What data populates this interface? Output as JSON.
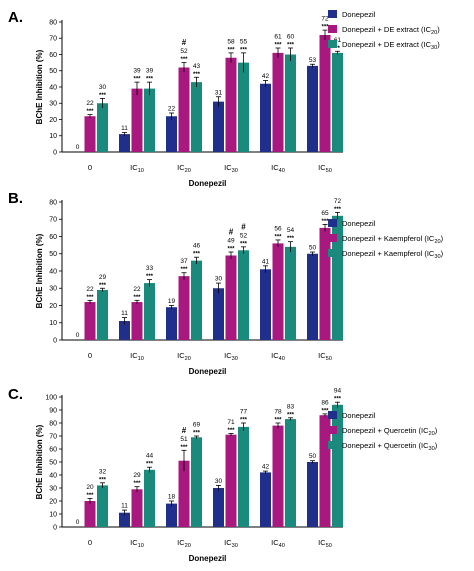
{
  "chart_data": [
    {
      "panel": "A.",
      "type": "bar",
      "ylabel": "BChE Inhibition (%)",
      "xlabel": "Donepezil",
      "ylim": [
        0,
        80
      ],
      "yticks": [
        0,
        10,
        20,
        30,
        40,
        50,
        60,
        70,
        80
      ],
      "categories": [
        {
          "main": "0",
          "sub": ""
        },
        {
          "main": "IC",
          "sub": "10"
        },
        {
          "main": "IC",
          "sub": "20"
        },
        {
          "main": "IC",
          "sub": "30"
        },
        {
          "main": "IC",
          "sub": "40"
        },
        {
          "main": "IC",
          "sub": "50"
        }
      ],
      "series": [
        {
          "name": "Donepezil",
          "sub": "",
          "suffix": "",
          "color": "#1f2f8a",
          "values": [
            0,
            11,
            22,
            31,
            42,
            53
          ],
          "labels": [
            "0",
            "11",
            "22",
            "31",
            "42",
            "53"
          ],
          "errors": [
            0,
            1,
            2,
            3,
            2,
            1
          ],
          "sig": [
            "",
            "",
            "",
            "",
            "",
            ""
          ],
          "hash": [
            "",
            "",
            "",
            "",
            "",
            ""
          ]
        },
        {
          "name": "Donepezil + DE extract (IC",
          "sub": "20",
          "suffix": ")",
          "color": "#a8187e",
          "values": [
            22,
            39,
            52,
            58,
            61,
            72
          ],
          "labels": [
            "22",
            "39",
            "52",
            "58",
            "61",
            "72"
          ],
          "errors": [
            1,
            4,
            3,
            3,
            3,
            3
          ],
          "sig": [
            "***",
            "***",
            "***",
            "***",
            "***",
            "***"
          ],
          "hash": [
            "",
            "",
            "#",
            "",
            "",
            ""
          ]
        },
        {
          "name": "Donepezil + DE extract (IC",
          "sub": "30",
          "suffix": ")",
          "color": "#1a8a7c",
          "values": [
            30,
            39,
            43,
            55,
            60,
            61
          ],
          "labels": [
            "30",
            "39",
            "43",
            "55",
            "60",
            "61"
          ],
          "errors": [
            3,
            4,
            3,
            6,
            4,
            1
          ],
          "sig": [
            "***",
            "***",
            "***",
            "***",
            "***",
            "**"
          ],
          "hash": [
            "",
            "",
            "",
            "",
            "",
            ""
          ]
        }
      ]
    },
    {
      "panel": "B.",
      "type": "bar",
      "ylabel": "BChE Inhibition (%)",
      "xlabel": "Donepezil",
      "ylim": [
        0,
        80
      ],
      "yticks": [
        0,
        10,
        20,
        30,
        40,
        50,
        60,
        70,
        80
      ],
      "categories": [
        {
          "main": "0",
          "sub": ""
        },
        {
          "main": "IC",
          "sub": "10"
        },
        {
          "main": "IC",
          "sub": "20"
        },
        {
          "main": "IC",
          "sub": "30"
        },
        {
          "main": "IC",
          "sub": "40"
        },
        {
          "main": "IC",
          "sub": "50"
        }
      ],
      "series": [
        {
          "name": "Donepezil",
          "sub": "",
          "suffix": "",
          "color": "#1f2f8a",
          "values": [
            0,
            11,
            19,
            30,
            41,
            50
          ],
          "labels": [
            "0",
            "11",
            "19",
            "30",
            "41",
            "50"
          ],
          "errors": [
            0,
            2,
            1,
            3,
            2,
            1
          ],
          "sig": [
            "",
            "",
            "",
            "",
            "",
            ""
          ],
          "hash": [
            "",
            "",
            "",
            "",
            "",
            ""
          ]
        },
        {
          "name": "Donepezil + Kaempferol (IC",
          "sub": "20",
          "suffix": ")",
          "color": "#a8187e",
          "values": [
            22,
            22,
            37,
            49,
            56,
            65
          ],
          "labels": [
            "22",
            "22",
            "37",
            "49",
            "56",
            "65"
          ],
          "errors": [
            1,
            1,
            2,
            2,
            2,
            2
          ],
          "sig": [
            "***",
            "***",
            "***",
            "***",
            "***",
            "***"
          ],
          "hash": [
            "",
            "",
            "",
            "#",
            "",
            ""
          ]
        },
        {
          "name": "Donepezil + Kaempferol (IC",
          "sub": "30",
          "suffix": ")",
          "color": "#1a8a7c",
          "values": [
            29,
            33,
            46,
            52,
            54,
            72
          ],
          "labels": [
            "29",
            "33",
            "46",
            "52",
            "54",
            "72"
          ],
          "errors": [
            1,
            2,
            2,
            2,
            3,
            2
          ],
          "sig": [
            "***",
            "***",
            "***",
            "***",
            "***",
            "***"
          ],
          "hash": [
            "",
            "",
            "",
            "#",
            "",
            ""
          ]
        }
      ]
    },
    {
      "panel": "C.",
      "type": "bar",
      "ylabel": "BChE Inhibition (%)",
      "xlabel": "Donepezil",
      "ylim": [
        0,
        100
      ],
      "yticks": [
        0,
        10,
        20,
        30,
        40,
        50,
        60,
        70,
        80,
        90,
        100
      ],
      "categories": [
        {
          "main": "0",
          "sub": ""
        },
        {
          "main": "IC",
          "sub": "10"
        },
        {
          "main": "IC",
          "sub": "20"
        },
        {
          "main": "IC",
          "sub": "30"
        },
        {
          "main": "IC",
          "sub": "40"
        },
        {
          "main": "IC",
          "sub": "50"
        }
      ],
      "series": [
        {
          "name": "Donepezil",
          "sub": "",
          "suffix": "",
          "color": "#1f2f8a",
          "values": [
            0,
            11,
            18,
            30,
            42,
            50
          ],
          "labels": [
            "0",
            "11",
            "18",
            "30",
            "42",
            "50"
          ],
          "errors": [
            0,
            2,
            2,
            2,
            1,
            1
          ],
          "sig": [
            "",
            "",
            "",
            "",
            "",
            ""
          ],
          "hash": [
            "",
            "",
            "",
            "",
            "",
            ""
          ]
        },
        {
          "name": "Donepezil + Quercetin (IC",
          "sub": "20",
          "suffix": ")",
          "color": "#a8187e",
          "values": [
            20,
            29,
            51,
            71,
            78,
            86
          ],
          "labels": [
            "20",
            "29",
            "51",
            "71",
            "78",
            "86"
          ],
          "errors": [
            2,
            2,
            8,
            1,
            2,
            1
          ],
          "sig": [
            "***",
            "***",
            "***",
            "***",
            "***",
            "***"
          ],
          "hash": [
            "",
            "",
            "#",
            "",
            "",
            ""
          ]
        },
        {
          "name": "Donepezil + Quercetin (IC",
          "sub": "30",
          "suffix": ")",
          "color": "#1a8a7c",
          "values": [
            32,
            44,
            69,
            77,
            83,
            94
          ],
          "labels": [
            "32",
            "44",
            "69",
            "77",
            "83",
            "94"
          ],
          "errors": [
            2,
            2,
            1,
            3,
            1,
            2
          ],
          "sig": [
            "***",
            "***",
            "***",
            "***",
            "***",
            "***"
          ],
          "hash": [
            "",
            "",
            "",
            "",
            "",
            ""
          ]
        }
      ]
    }
  ]
}
